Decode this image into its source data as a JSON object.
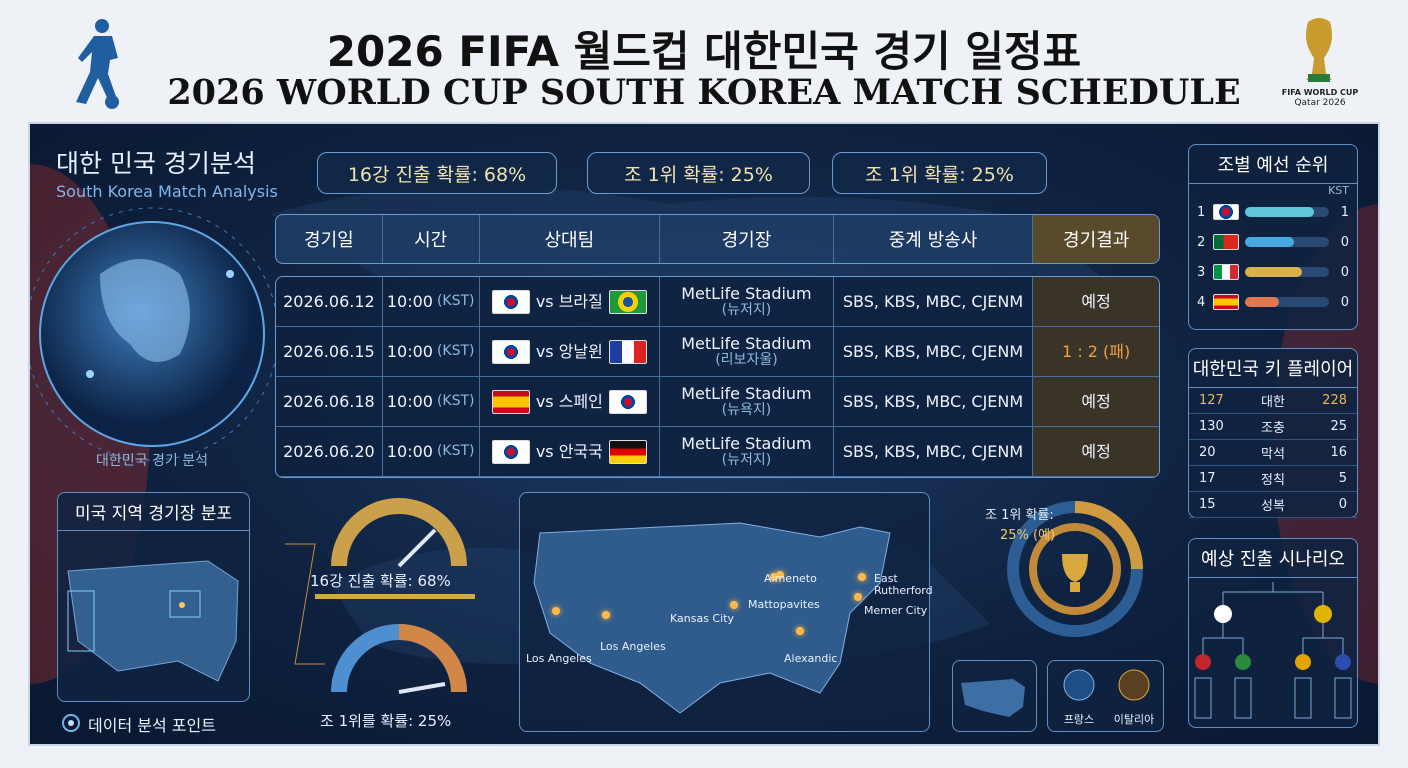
{
  "header": {
    "title": "2026 FIFA 월드컵 대한민국 경기 일정표",
    "subtitle": "2026 WORLD CUP SOUTH KOREA MATCH SCHEDULE",
    "logo_line1": "FIFA WORLD CUP",
    "logo_line2": "Qatar 2026"
  },
  "analysis": {
    "title": "대한 민국 경기분석",
    "subtitle": "South Korea Match Analysis",
    "stats": [
      "16강 진출 확률: 68%",
      "조 1위 확률: 25%",
      "조 1위 확률: 25%"
    ],
    "globe_caption": "대한민국 경기 분석"
  },
  "schedule": {
    "headers": [
      "경기일",
      "시간",
      "상대팀",
      "경기장",
      "중계 방송사",
      "경기결과"
    ],
    "rows": [
      {
        "date": "2026.06.12",
        "time": "10:00",
        "zone": "(KST)",
        "opponent": "vs 브라질",
        "stadium": "MetLife Stadium",
        "city": "(뉴저지)",
        "broadcast": "SBS, KBS, MBC, CJENM",
        "result": "예정"
      },
      {
        "date": "2026.06.15",
        "time": "10:00",
        "zone": "(KST)",
        "opponent": "vs 앙날윈",
        "stadium": "MetLife Stadium",
        "city": "(리보자울)",
        "broadcast": "SBS, KBS, MBC, CJENM",
        "result": "1 : 2 (패)"
      },
      {
        "date": "2026.06.18",
        "time": "10:00",
        "zone": "(KST)",
        "opponent": "vs 스페인",
        "stadium": "MetLife Stadium",
        "city": "(뉴욕지)",
        "broadcast": "SBS, KBS, MBC, CJENM",
        "result": "예정"
      },
      {
        "date": "2026.06.20",
        "time": "10:00",
        "zone": "(KST)",
        "opponent": "vs 안국국",
        "stadium": "MetLife Stadium",
        "city": "(뉴저지)",
        "broadcast": "SBS, KBS, MBC, CJENM",
        "result": "예정"
      }
    ]
  },
  "standings": {
    "title": "조별 예선 순위",
    "column": "KST",
    "rows": [
      {
        "rank": "1",
        "points": "1"
      },
      {
        "rank": "2",
        "points": "0"
      },
      {
        "rank": "3",
        "points": "0"
      },
      {
        "rank": "4",
        "points": "0"
      }
    ]
  },
  "key_players": {
    "title": "대한민국 키 플레이어",
    "rows": [
      [
        "127",
        "대한",
        "228"
      ],
      [
        "130",
        "조충",
        "25"
      ],
      [
        "20",
        "막석",
        "16"
      ],
      [
        "17",
        "정칙",
        "5"
      ],
      [
        "15",
        "성복",
        "0"
      ]
    ]
  },
  "scenario": {
    "title": "예상 진출 시나리오"
  },
  "venues": {
    "title": "미국 지역 경기장 분포",
    "gauges": [
      "16강 진출 확률: 68%",
      "조 1위를 확률: 25%"
    ],
    "cities": [
      "Los Angeles",
      "Los Angeles",
      "Kansas City",
      "Mattopavites",
      "Aimeneto",
      "East Rutherford",
      "Memer City",
      "Alexandic"
    ],
    "legend": "데이터 분석 포인트"
  },
  "group_odds": {
    "label": "조 1위 확률:",
    "value": "25% (예)"
  },
  "teams": [
    "프랑스",
    "이탈리아"
  ]
}
